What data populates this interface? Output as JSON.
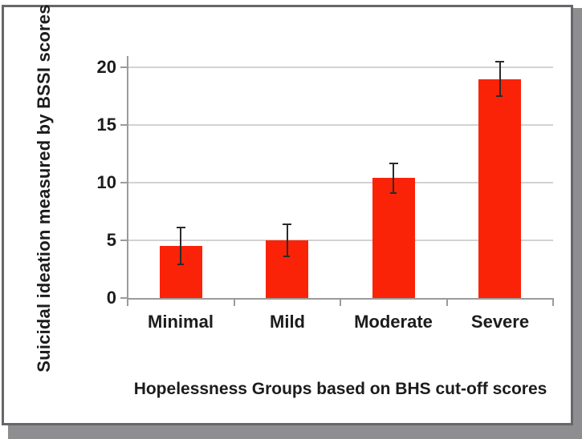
{
  "figure": {
    "background": "#ffffff",
    "frame_border_color": "#66666b",
    "shadow_color": "#8e8e91"
  },
  "chart_data": {
    "type": "bar",
    "title": "",
    "categories": [
      "Minimal",
      "Mild",
      "Moderate",
      "Severe"
    ],
    "values": [
      4.5,
      5.0,
      10.4,
      19.0
    ],
    "error_bars": [
      1.6,
      1.4,
      1.3,
      1.5
    ],
    "xlabel": "Hopelessness Groups based on BHS cut-off scores",
    "ylabel": "Suicidal ideation measured by BSSI scores",
    "ytick_labels": [
      "0",
      "5",
      "10",
      "15",
      "20"
    ],
    "yticks": [
      0,
      5,
      10,
      15,
      20
    ],
    "ylim": [
      0,
      21
    ],
    "grid": true,
    "legend": false,
    "bar_color": "#fa2308",
    "error_bar_color": "#2b2b2b",
    "gridline_color": "#d2d2d2",
    "axis_color": "#9b9b9b",
    "text_color": "#1c1c1c"
  }
}
